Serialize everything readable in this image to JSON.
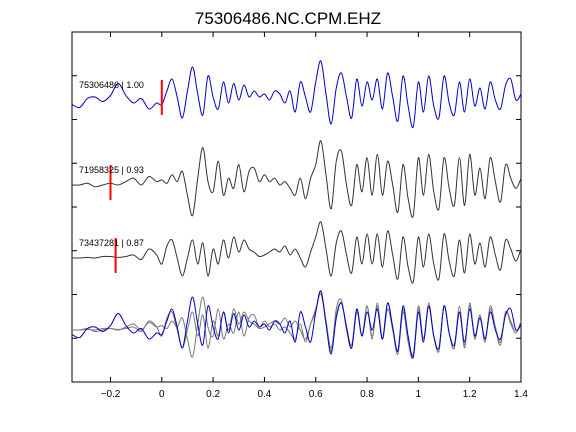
{
  "chart_data": {
    "type": "line",
    "title": "75306486.NC.CPM.EHZ",
    "xlabel": "",
    "ylabel": "",
    "xlim": [
      -0.35,
      1.4
    ],
    "xticks": [
      -0.2,
      0,
      0.2,
      0.4,
      0.6,
      0.8,
      1,
      1.2,
      1.4
    ],
    "xtick_labels": [
      "−0.2",
      "0",
      "0.2",
      "0.4",
      "0.6",
      "0.8",
      "1",
      "1.2",
      "1.4"
    ],
    "grid": false,
    "colors": {
      "template": "#0000cc",
      "match": "#333333",
      "pick": "#ff0000",
      "overlay": "#777777"
    },
    "traces": [
      {
        "label": "75306486 | 1.00",
        "color": "#0000cc",
        "pick_time": 0.0,
        "values": [
          [
            -0.35,
            -0.15
          ],
          [
            -0.32,
            -0.25
          ],
          [
            -0.29,
            0.05
          ],
          [
            -0.26,
            0.1
          ],
          [
            -0.23,
            -0.05
          ],
          [
            -0.2,
            0.15
          ],
          [
            -0.17,
            0.55
          ],
          [
            -0.14,
            0.15
          ],
          [
            -0.11,
            -0.1
          ],
          [
            -0.08,
            0.05
          ],
          [
            -0.05,
            -0.3
          ],
          [
            -0.02,
            -0.1
          ],
          [
            0.0,
            -0.15
          ],
          [
            0.02,
            0.3
          ],
          [
            0.04,
            0.7
          ],
          [
            0.06,
            0.1
          ],
          [
            0.08,
            -0.6
          ],
          [
            0.1,
            0.3
          ],
          [
            0.12,
            1.1
          ],
          [
            0.14,
            0.2
          ],
          [
            0.16,
            -0.5
          ],
          [
            0.18,
            0.8
          ],
          [
            0.2,
            0.1
          ],
          [
            0.22,
            -0.3
          ],
          [
            0.24,
            0.6
          ],
          [
            0.26,
            -0.1
          ],
          [
            0.28,
            0.55
          ],
          [
            0.3,
            0.0
          ],
          [
            0.32,
            0.5
          ],
          [
            0.34,
            0.1
          ],
          [
            0.36,
            0.3
          ],
          [
            0.38,
            0.1
          ],
          [
            0.4,
            0.2
          ],
          [
            0.42,
            0.0
          ],
          [
            0.44,
            0.3
          ],
          [
            0.46,
            0.2
          ],
          [
            0.48,
            -0.1
          ],
          [
            0.5,
            0.3
          ],
          [
            0.52,
            -0.4
          ],
          [
            0.54,
            0.6
          ],
          [
            0.56,
            0.1
          ],
          [
            0.58,
            -0.4
          ],
          [
            0.6,
            0.6
          ],
          [
            0.62,
            1.3
          ],
          [
            0.64,
            0.2
          ],
          [
            0.66,
            -0.8
          ],
          [
            0.68,
            0.4
          ],
          [
            0.7,
            0.9
          ],
          [
            0.72,
            0.1
          ],
          [
            0.74,
            -0.6
          ],
          [
            0.76,
            0.7
          ],
          [
            0.78,
            -0.2
          ],
          [
            0.8,
            0.6
          ],
          [
            0.82,
            0.0
          ],
          [
            0.84,
            0.7
          ],
          [
            0.86,
            -0.3
          ],
          [
            0.88,
            0.9
          ],
          [
            0.9,
            0.1
          ],
          [
            0.92,
            -0.7
          ],
          [
            0.94,
            0.8
          ],
          [
            0.96,
            -0.2
          ],
          [
            0.98,
            -0.9
          ],
          [
            1.0,
            0.6
          ],
          [
            1.02,
            -0.4
          ],
          [
            1.04,
            0.8
          ],
          [
            1.06,
            -0.2
          ],
          [
            1.08,
            -0.6
          ],
          [
            1.1,
            0.8
          ],
          [
            1.12,
            -0.1
          ],
          [
            1.14,
            -0.5
          ],
          [
            1.16,
            0.6
          ],
          [
            1.18,
            -0.4
          ],
          [
            1.2,
            0.7
          ],
          [
            1.22,
            -0.2
          ],
          [
            1.24,
            0.4
          ],
          [
            1.26,
            -0.3
          ],
          [
            1.28,
            0.6
          ],
          [
            1.3,
            0.0
          ],
          [
            1.32,
            -0.3
          ],
          [
            1.34,
            0.5
          ],
          [
            1.36,
            0.7
          ],
          [
            1.38,
            0.0
          ],
          [
            1.4,
            0.2
          ]
        ]
      },
      {
        "label": "71958325 | 0.93",
        "color": "#333333",
        "pick_time": -0.2,
        "values": [
          [
            -0.35,
            0.0
          ],
          [
            -0.32,
            0.0
          ],
          [
            -0.29,
            0.05
          ],
          [
            -0.26,
            -0.05
          ],
          [
            -0.23,
            0.0
          ],
          [
            -0.2,
            0.05
          ],
          [
            -0.17,
            0.0
          ],
          [
            -0.14,
            0.1
          ],
          [
            -0.11,
            0.2
          ],
          [
            -0.08,
            0.0
          ],
          [
            -0.05,
            0.25
          ],
          [
            -0.02,
            0.1
          ],
          [
            0.0,
            0.15
          ],
          [
            0.02,
            0.05
          ],
          [
            0.04,
            0.3
          ],
          [
            0.06,
            0.1
          ],
          [
            0.08,
            0.4
          ],
          [
            0.1,
            -0.3
          ],
          [
            0.12,
            -0.9
          ],
          [
            0.14,
            0.2
          ],
          [
            0.16,
            1.1
          ],
          [
            0.18,
            0.1
          ],
          [
            0.2,
            -0.2
          ],
          [
            0.22,
            0.7
          ],
          [
            0.24,
            -0.3
          ],
          [
            0.26,
            0.2
          ],
          [
            0.28,
            -0.1
          ],
          [
            0.3,
            0.6
          ],
          [
            0.32,
            -0.2
          ],
          [
            0.34,
            0.4
          ],
          [
            0.36,
            0.5
          ],
          [
            0.38,
            0.1
          ],
          [
            0.4,
            0.3
          ],
          [
            0.42,
            0.1
          ],
          [
            0.44,
            0.2
          ],
          [
            0.46,
            0.0
          ],
          [
            0.48,
            0.1
          ],
          [
            0.5,
            -0.1
          ],
          [
            0.52,
            -0.3
          ],
          [
            0.54,
            0.2
          ],
          [
            0.56,
            -0.4
          ],
          [
            0.58,
            0.2
          ],
          [
            0.6,
            0.6
          ],
          [
            0.62,
            1.3
          ],
          [
            0.64,
            0.3
          ],
          [
            0.66,
            -0.7
          ],
          [
            0.68,
            0.7
          ],
          [
            0.7,
            1.0
          ],
          [
            0.72,
            0.0
          ],
          [
            0.74,
            -0.6
          ],
          [
            0.76,
            0.6
          ],
          [
            0.78,
            -0.2
          ],
          [
            0.8,
            0.8
          ],
          [
            0.82,
            -0.3
          ],
          [
            0.84,
            0.9
          ],
          [
            0.86,
            -0.3
          ],
          [
            0.88,
            0.7
          ],
          [
            0.9,
            0.0
          ],
          [
            0.92,
            -0.8
          ],
          [
            0.94,
            0.6
          ],
          [
            0.96,
            -0.4
          ],
          [
            0.98,
            -0.9
          ],
          [
            1.0,
            0.8
          ],
          [
            1.02,
            -0.3
          ],
          [
            1.04,
            0.9
          ],
          [
            1.06,
            -0.2
          ],
          [
            1.08,
            -0.7
          ],
          [
            1.1,
            0.8
          ],
          [
            1.12,
            -0.1
          ],
          [
            1.14,
            -0.6
          ],
          [
            1.16,
            0.8
          ],
          [
            1.18,
            -0.6
          ],
          [
            1.2,
            0.9
          ],
          [
            1.22,
            -0.3
          ],
          [
            1.24,
            0.5
          ],
          [
            1.26,
            -0.4
          ],
          [
            1.28,
            0.8
          ],
          [
            1.3,
            0.1
          ],
          [
            1.32,
            -0.5
          ],
          [
            1.34,
            0.6
          ],
          [
            1.36,
            0.2
          ],
          [
            1.38,
            -0.1
          ],
          [
            1.4,
            0.2
          ]
        ]
      },
      {
        "label": "73437281 | 0.87",
        "color": "#333333",
        "pick_time": -0.18,
        "values": [
          [
            -0.35,
            0.0
          ],
          [
            -0.32,
            0.0
          ],
          [
            -0.29,
            0.02
          ],
          [
            -0.26,
            0.0
          ],
          [
            -0.23,
            0.05
          ],
          [
            -0.2,
            0.05
          ],
          [
            -0.17,
            0.02
          ],
          [
            -0.14,
            0.05
          ],
          [
            -0.11,
            0.1
          ],
          [
            -0.08,
            -0.05
          ],
          [
            -0.05,
            0.3
          ],
          [
            -0.02,
            0.1
          ],
          [
            0.0,
            -0.2
          ],
          [
            0.02,
            0.4
          ],
          [
            0.04,
            0.6
          ],
          [
            0.06,
            0.0
          ],
          [
            0.08,
            -0.6
          ],
          [
            0.1,
            0.0
          ],
          [
            0.12,
            0.6
          ],
          [
            0.14,
            -0.2
          ],
          [
            0.16,
            0.5
          ],
          [
            0.18,
            -0.6
          ],
          [
            0.2,
            0.3
          ],
          [
            0.22,
            -0.2
          ],
          [
            0.24,
            0.6
          ],
          [
            0.26,
            0.0
          ],
          [
            0.28,
            0.7
          ],
          [
            0.3,
            0.2
          ],
          [
            0.32,
            0.6
          ],
          [
            0.34,
            0.3
          ],
          [
            0.36,
            0.2
          ],
          [
            0.38,
            0.05
          ],
          [
            0.4,
            0.1
          ],
          [
            0.42,
            0.2
          ],
          [
            0.44,
            0.3
          ],
          [
            0.46,
            0.2
          ],
          [
            0.48,
            0.4
          ],
          [
            0.5,
            0.1
          ],
          [
            0.52,
            0.3
          ],
          [
            0.54,
            0.0
          ],
          [
            0.56,
            -0.3
          ],
          [
            0.58,
            0.2
          ],
          [
            0.6,
            0.7
          ],
          [
            0.62,
            1.2
          ],
          [
            0.64,
            0.3
          ],
          [
            0.66,
            -0.6
          ],
          [
            0.68,
            0.5
          ],
          [
            0.7,
            0.9
          ],
          [
            0.72,
            0.1
          ],
          [
            0.74,
            -0.5
          ],
          [
            0.76,
            0.7
          ],
          [
            0.78,
            -0.2
          ],
          [
            0.8,
            0.8
          ],
          [
            0.82,
            -0.2
          ],
          [
            0.84,
            0.8
          ],
          [
            0.86,
            -0.3
          ],
          [
            0.88,
            0.9
          ],
          [
            0.9,
            0.1
          ],
          [
            0.92,
            -0.7
          ],
          [
            0.94,
            0.7
          ],
          [
            0.96,
            -0.3
          ],
          [
            0.98,
            -0.8
          ],
          [
            1.0,
            0.7
          ],
          [
            1.02,
            -0.3
          ],
          [
            1.04,
            0.8
          ],
          [
            1.06,
            -0.2
          ],
          [
            1.08,
            -0.7
          ],
          [
            1.1,
            0.8
          ],
          [
            1.12,
            -0.1
          ],
          [
            1.14,
            -0.6
          ],
          [
            1.16,
            0.6
          ],
          [
            1.18,
            -0.5
          ],
          [
            1.2,
            0.8
          ],
          [
            1.22,
            -0.2
          ],
          [
            1.24,
            0.5
          ],
          [
            1.26,
            -0.3
          ],
          [
            1.28,
            0.7
          ],
          [
            1.3,
            0.1
          ],
          [
            1.32,
            -0.4
          ],
          [
            1.34,
            0.6
          ],
          [
            1.36,
            0.3
          ],
          [
            1.38,
            -0.1
          ],
          [
            1.4,
            0.3
          ]
        ]
      }
    ]
  }
}
